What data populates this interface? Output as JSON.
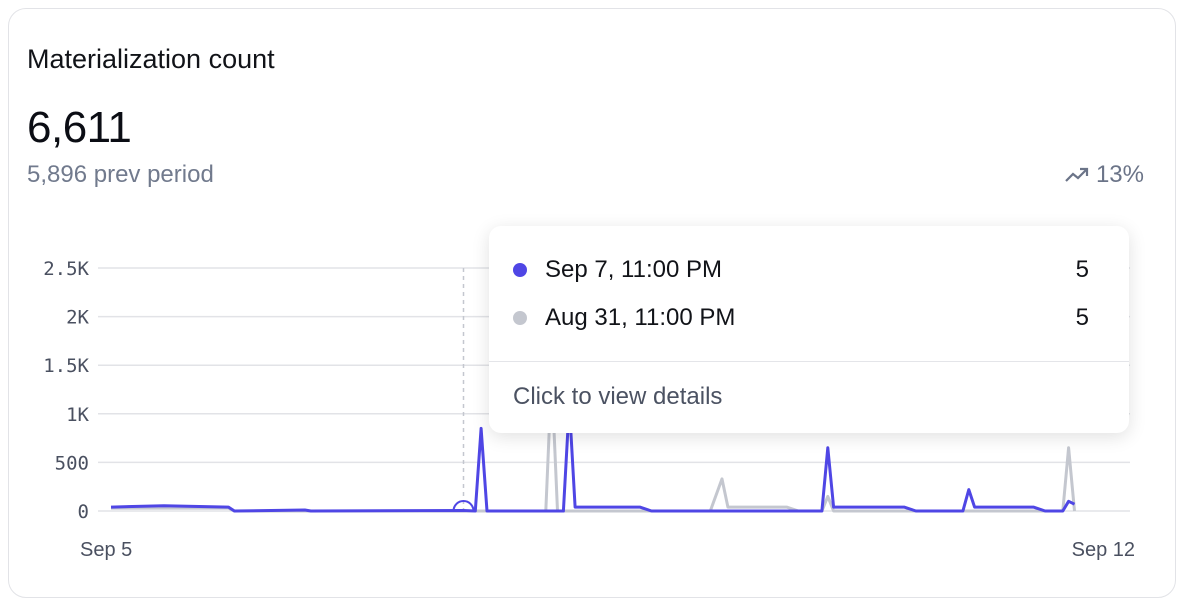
{
  "card": {
    "title": "Materialization count",
    "value": "6,611",
    "prev_period": "5,896 prev period",
    "delta": "13%",
    "delta_icon": "trending-up-icon"
  },
  "tooltip": {
    "rows": [
      {
        "label": "Sep 7, 11:00 PM",
        "value": "5",
        "color": "#4f46e5"
      },
      {
        "label": "Aug 31, 11:00 PM",
        "value": "5",
        "color": "#c4c7cf"
      }
    ],
    "footer": "Click to view details"
  },
  "chart_data": {
    "type": "line",
    "x_tick_labels": [
      "Sep 5",
      "Sep 12"
    ],
    "y_tick_labels": [
      "0",
      "500",
      "1K",
      "1.5K",
      "2K",
      "2.5K"
    ],
    "y_ticks": [
      0,
      500,
      1000,
      1500,
      2000,
      2500
    ],
    "ylim": [
      0,
      2500
    ],
    "xlim": [
      "Sep 5 11:00",
      "Sep 12 11:00"
    ],
    "grid": true,
    "hover_x": "Sep 7 23:00",
    "series": [
      {
        "color": "#c4c7cf",
        "points": [
          [
            "Sep 5 11:00",
            30
          ],
          [
            "Sep 6 07:00",
            30
          ],
          [
            "Sep 6 08:00",
            0
          ],
          [
            "Sep 8 13:00",
            0
          ],
          [
            "Sep 8 14:00",
            1400
          ],
          [
            "Sep 8 15:00",
            0
          ],
          [
            "Sep 9 17:00",
            0
          ],
          [
            "Sep 9 19:00",
            330
          ],
          [
            "Sep 9 20:00",
            40
          ],
          [
            "Sep 10 06:00",
            40
          ],
          [
            "Sep 10 08:00",
            0
          ],
          [
            "Sep 10 12:00",
            0
          ],
          [
            "Sep 10 13:00",
            150
          ],
          [
            "Sep 10 14:00",
            0
          ],
          [
            "Sep 12 05:00",
            0
          ],
          [
            "Sep 12 06:00",
            650
          ],
          [
            "Sep 12 07:00",
            0
          ]
        ]
      },
      {
        "color": "#4f46e5",
        "points": [
          [
            "Sep 5 11:00",
            40
          ],
          [
            "Sep 5 20:00",
            55
          ],
          [
            "Sep 6 07:00",
            40
          ],
          [
            "Sep 6 08:00",
            0
          ],
          [
            "Sep 6 20:00",
            10
          ],
          [
            "Sep 6 21:00",
            0
          ],
          [
            "Sep 7 23:00",
            5
          ],
          [
            "Sep 8 01:00",
            0
          ],
          [
            "Sep 8 02:00",
            850
          ],
          [
            "Sep 8 03:00",
            0
          ],
          [
            "Sep 8 16:00",
            0
          ],
          [
            "Sep 8 17:00",
            1100
          ],
          [
            "Sep 8 18:00",
            40
          ],
          [
            "Sep 9 05:00",
            40
          ],
          [
            "Sep 9 07:00",
            0
          ],
          [
            "Sep 10 12:00",
            0
          ],
          [
            "Sep 10 13:00",
            650
          ],
          [
            "Sep 10 14:00",
            40
          ],
          [
            "Sep 11 02:00",
            40
          ],
          [
            "Sep 11 04:00",
            0
          ],
          [
            "Sep 11 12:00",
            0
          ],
          [
            "Sep 11 13:00",
            220
          ],
          [
            "Sep 11 14:00",
            40
          ],
          [
            "Sep 12 00:00",
            40
          ],
          [
            "Sep 12 02:00",
            0
          ],
          [
            "Sep 12 05:00",
            0
          ],
          [
            "Sep 12 06:00",
            100
          ],
          [
            "Sep 12 07:00",
            70
          ]
        ]
      }
    ]
  }
}
